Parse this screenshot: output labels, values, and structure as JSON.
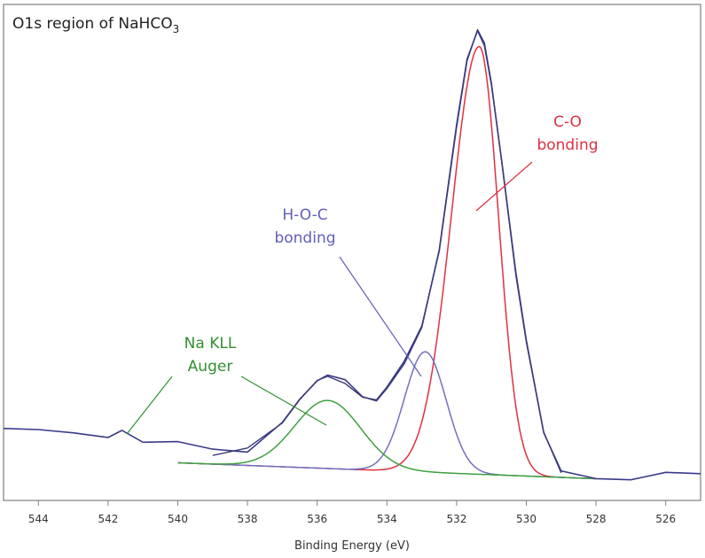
{
  "chart_data": {
    "type": "line",
    "title": "O1s region of NaHCO",
    "title_subscript": "3",
    "xlabel": "Binding Energy (eV)",
    "ylabel": "",
    "x_reversed": true,
    "xlim": [
      545,
      525
    ],
    "ylim": [
      0,
      1
    ],
    "x_ticks": [
      544,
      542,
      540,
      538,
      536,
      534,
      532,
      530,
      528,
      526
    ],
    "grid": false,
    "legend": "none",
    "colors": {
      "envelope": "#3a3a7a",
      "data": "#3a3a8a",
      "co_peak": "#e03040",
      "hoc_peak": "#7070c0",
      "auger": "#40a040",
      "co_label": "#e03040",
      "hoc_label": "#6060b8",
      "auger_label": "#309030"
    },
    "series": [
      {
        "name": "raw data",
        "color_key": "data",
        "x": [
          545,
          544,
          543,
          542,
          541.6,
          541,
          540,
          539,
          538,
          537,
          536.5,
          536,
          535.7,
          535.2,
          534.7,
          534.3,
          534,
          533.5,
          533,
          532.5,
          532,
          531.7,
          531.4,
          531.2,
          531,
          530.7,
          530.3,
          530,
          529.5,
          529,
          528,
          527,
          526.5,
          526,
          525
        ],
        "y": [
          0.065,
          0.06,
          0.055,
          0.052,
          0.075,
          0.05,
          0.05,
          0.03,
          0.025,
          0.1,
          0.16,
          0.205,
          0.215,
          0.2,
          0.16,
          0.155,
          0.19,
          0.25,
          0.33,
          0.5,
          0.78,
          0.93,
          1.0,
          0.97,
          0.88,
          0.7,
          0.45,
          0.3,
          0.1,
          0.02,
          0.005,
          0.0,
          0.005,
          0.015,
          0.02
        ]
      },
      {
        "name": "envelope",
        "color_key": "envelope",
        "x": [
          539,
          538,
          537,
          536.5,
          536,
          535.7,
          535.2,
          534.7,
          534.3,
          534,
          533.5,
          533,
          532.5,
          532,
          531.7,
          531.4,
          531.2,
          531,
          530.7,
          530.3,
          530,
          529.5,
          529
        ],
        "y": [
          0.02,
          0.04,
          0.1,
          0.155,
          0.2,
          0.21,
          0.195,
          0.165,
          0.16,
          0.19,
          0.25,
          0.33,
          0.5,
          0.78,
          0.93,
          1.0,
          0.97,
          0.88,
          0.7,
          0.45,
          0.3,
          0.1,
          0.01
        ]
      },
      {
        "name": "C-O",
        "color_key": "co_peak",
        "component": "gaussian",
        "center": 531.35,
        "height": 0.962,
        "sigma": 0.55,
        "tail_left": 0.45
      },
      {
        "name": "H-O-C",
        "color_key": "hoc_peak",
        "component": "gaussian",
        "center": 532.9,
        "height": 0.272,
        "sigma": 0.6
      },
      {
        "name": "Na KLL Auger",
        "color_key": "auger",
        "component": "gaussian",
        "center": 535.7,
        "height": 0.155,
        "sigma": 0.95
      }
    ],
    "annotations": [
      {
        "lines": [
          "C-O",
          "bonding"
        ],
        "color_key": "co_label"
      },
      {
        "lines": [
          "H-O-C",
          "bonding"
        ],
        "color_key": "hoc_label"
      },
      {
        "lines": [
          "Na KLL",
          "Auger"
        ],
        "color_key": "auger_label"
      }
    ]
  }
}
